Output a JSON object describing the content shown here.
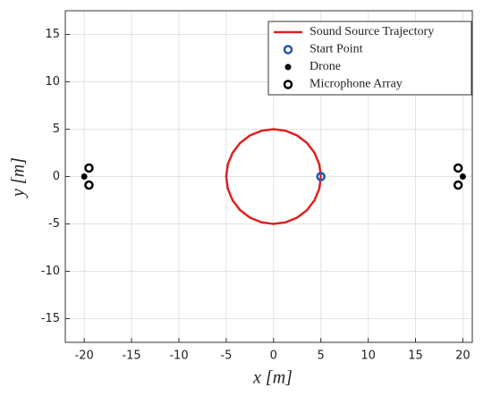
{
  "chart_data": {
    "type": "scatter",
    "xlabel": "x [m]",
    "ylabel": "y [m]",
    "xlim": [
      -22,
      21
    ],
    "ylim": [
      -17.5,
      17.5
    ],
    "xticks": [
      -20,
      -15,
      -10,
      -5,
      0,
      5,
      10,
      15,
      20
    ],
    "yticks": [
      -15,
      -10,
      -5,
      0,
      5,
      10,
      15
    ],
    "grid": true,
    "legend": "upper right",
    "series": [
      {
        "name": "Sound Source Trajectory",
        "color": "#e02020",
        "mode": "line",
        "x": [
          5,
          4.83,
          4.33,
          3.54,
          2.5,
          1.29,
          0,
          -1.29,
          -2.5,
          -3.54,
          -4.33,
          -4.83,
          -5,
          -4.83,
          -4.33,
          -3.54,
          -2.5,
          -1.29,
          0,
          1.29,
          2.5,
          3.54,
          4.33,
          4.83,
          5
        ],
        "y": [
          0,
          1.29,
          2.5,
          3.54,
          4.33,
          4.83,
          5,
          4.83,
          4.33,
          3.54,
          2.5,
          1.29,
          0,
          -1.29,
          -2.5,
          -3.54,
          -4.33,
          -4.83,
          -5,
          -4.83,
          -4.33,
          -3.54,
          -2.5,
          -1.29,
          0
        ]
      },
      {
        "name": "Start Point",
        "color": "#2255b0",
        "mode": "open-circle",
        "x": [
          5
        ],
        "y": [
          0
        ]
      },
      {
        "name": "Drone",
        "color": "#000000",
        "mode": "dot",
        "x": [
          -20,
          20
        ],
        "y": [
          0,
          0
        ]
      },
      {
        "name": "Microphone Array",
        "color": "#000000",
        "mode": "open-circle",
        "x": [
          -19.5,
          -19.5,
          19.5,
          19.5
        ],
        "y": [
          0.9,
          -0.9,
          0.9,
          -0.9
        ]
      }
    ]
  }
}
